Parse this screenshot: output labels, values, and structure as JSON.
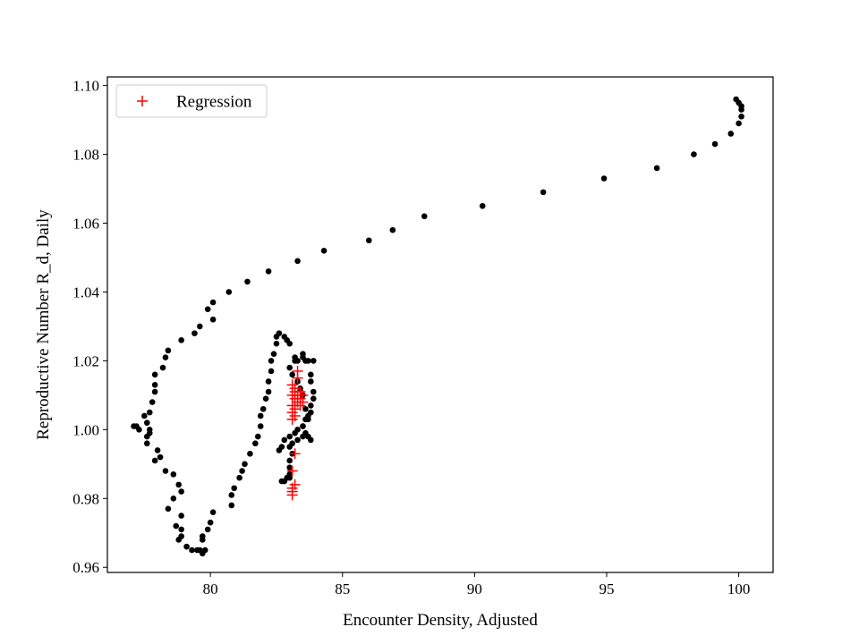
{
  "chart_data": {
    "type": "scatter",
    "title": "",
    "xlabel": "Encounter Density, Adjusted",
    "ylabel": "Reproductive Number R_d, Daily",
    "xlim": [
      76.1,
      101.3
    ],
    "ylim": [
      0.9585,
      1.1025
    ],
    "xticks": [
      80,
      85,
      90,
      95,
      100
    ],
    "xtick_labels": [
      "80",
      "85",
      "90",
      "95",
      "100"
    ],
    "yticks": [
      0.96,
      0.98,
      1.0,
      1.02,
      1.04,
      1.06,
      1.08,
      1.1
    ],
    "ytick_labels": [
      "0.96",
      "0.98",
      "1.00",
      "1.02",
      "1.04",
      "1.06",
      "1.08",
      "1.10"
    ],
    "grid": false,
    "legend_position": "top-left",
    "series": [
      {
        "name": "",
        "marker": "dot",
        "color": "#000000",
        "points": [
          [
            100.1,
            1.091
          ],
          [
            100.1,
            1.093
          ],
          [
            100.1,
            1.094
          ],
          [
            100.0,
            1.095
          ],
          [
            99.9,
            1.096
          ],
          [
            100.0,
            1.089
          ],
          [
            99.7,
            1.086
          ],
          [
            99.1,
            1.083
          ],
          [
            98.3,
            1.08
          ],
          [
            96.9,
            1.076
          ],
          [
            94.9,
            1.073
          ],
          [
            92.6,
            1.069
          ],
          [
            90.3,
            1.065
          ],
          [
            88.1,
            1.062
          ],
          [
            86.9,
            1.058
          ],
          [
            86.0,
            1.055
          ],
          [
            84.3,
            1.052
          ],
          [
            83.3,
            1.049
          ],
          [
            82.2,
            1.046
          ],
          [
            81.4,
            1.043
          ],
          [
            80.7,
            1.04
          ],
          [
            80.1,
            1.037
          ],
          [
            79.9,
            1.035
          ],
          [
            80.1,
            1.032
          ],
          [
            79.6,
            1.03
          ],
          [
            79.4,
            1.028
          ],
          [
            78.9,
            1.026
          ],
          [
            78.4,
            1.023
          ],
          [
            78.3,
            1.021
          ],
          [
            78.2,
            1.018
          ],
          [
            77.9,
            1.016
          ],
          [
            77.9,
            1.013
          ],
          [
            77.9,
            1.011
          ],
          [
            77.8,
            1.008
          ],
          [
            77.7,
            1.005
          ],
          [
            77.5,
            1.004
          ],
          [
            77.6,
            1.002
          ],
          [
            77.2,
            1.001
          ],
          [
            77.1,
            1.001
          ],
          [
            77.3,
            1.0
          ],
          [
            77.7,
            1.0
          ],
          [
            77.7,
            0.999
          ],
          [
            77.6,
            0.998
          ],
          [
            77.6,
            0.996
          ],
          [
            78.0,
            0.994
          ],
          [
            78.1,
            0.992
          ],
          [
            77.9,
            0.991
          ],
          [
            78.3,
            0.988
          ],
          [
            78.6,
            0.987
          ],
          [
            78.8,
            0.984
          ],
          [
            78.9,
            0.982
          ],
          [
            78.6,
            0.98
          ],
          [
            78.4,
            0.977
          ],
          [
            78.9,
            0.975
          ],
          [
            78.7,
            0.972
          ],
          [
            78.9,
            0.971
          ],
          [
            78.9,
            0.969
          ],
          [
            78.8,
            0.968
          ],
          [
            79.1,
            0.966
          ],
          [
            79.3,
            0.965
          ],
          [
            79.5,
            0.965
          ],
          [
            79.6,
            0.965
          ],
          [
            79.7,
            0.964
          ],
          [
            79.8,
            0.965
          ],
          [
            79.7,
            0.968
          ],
          [
            79.7,
            0.969
          ],
          [
            79.9,
            0.971
          ],
          [
            80.0,
            0.973
          ],
          [
            80.1,
            0.976
          ],
          [
            80.8,
            0.978
          ],
          [
            80.8,
            0.981
          ],
          [
            80.9,
            0.983
          ],
          [
            81.1,
            0.986
          ],
          [
            81.2,
            0.988
          ],
          [
            81.3,
            0.99
          ],
          [
            81.5,
            0.993
          ],
          [
            81.7,
            0.996
          ],
          [
            81.8,
            0.998
          ],
          [
            81.9,
            1.001
          ],
          [
            81.9,
            1.004
          ],
          [
            82.0,
            1.006
          ],
          [
            82.1,
            1.009
          ],
          [
            82.2,
            1.011
          ],
          [
            82.2,
            1.014
          ],
          [
            82.3,
            1.017
          ],
          [
            82.3,
            1.02
          ],
          [
            82.4,
            1.022
          ],
          [
            82.5,
            1.025
          ],
          [
            82.5,
            1.027
          ],
          [
            82.6,
            1.028
          ],
          [
            82.8,
            1.027
          ],
          [
            82.9,
            1.026
          ],
          [
            83.0,
            1.025
          ],
          [
            83.2,
            1.02
          ],
          [
            83.3,
            1.02
          ],
          [
            83.5,
            1.021
          ],
          [
            83.6,
            1.02
          ],
          [
            83.7,
            1.02
          ],
          [
            83.9,
            1.02
          ],
          [
            83.8,
            1.016
          ],
          [
            83.8,
            1.014
          ],
          [
            83.9,
            1.011
          ],
          [
            83.9,
            1.009
          ],
          [
            83.8,
            1.007
          ],
          [
            83.8,
            1.005
          ],
          [
            83.7,
            1.004
          ],
          [
            83.6,
            1.003
          ],
          [
            83.5,
            1.001
          ],
          [
            83.3,
            1.0
          ],
          [
            83.2,
            0.999
          ],
          [
            83.0,
            0.998
          ],
          [
            82.8,
            0.997
          ],
          [
            82.7,
            0.995
          ],
          [
            82.6,
            0.994
          ],
          [
            83.1,
            0.993
          ],
          [
            83.0,
            0.991
          ],
          [
            83.0,
            0.989
          ],
          [
            83.0,
            0.986
          ],
          [
            82.9,
            0.986
          ],
          [
            82.8,
            0.985
          ],
          [
            82.7,
            0.985
          ],
          [
            83.0,
            0.987
          ],
          [
            83.0,
            0.995
          ],
          [
            83.1,
            0.996
          ],
          [
            83.3,
            0.997
          ],
          [
            83.5,
            0.998
          ],
          [
            83.6,
            0.999
          ],
          [
            83.7,
            0.998
          ],
          [
            83.8,
            0.997
          ],
          [
            83.5,
            1.001
          ],
          [
            83.7,
            1.003
          ],
          [
            83.6,
            1.006
          ],
          [
            83.5,
            1.01
          ],
          [
            83.4,
            1.012
          ],
          [
            83.3,
            1.014
          ],
          [
            83.1,
            1.016
          ],
          [
            83.0,
            1.018
          ],
          [
            83.2,
            1.021
          ],
          [
            83.5,
            1.022
          ]
        ]
      },
      {
        "name": "Regression",
        "marker": "plus",
        "color": "#ff0000",
        "points": [
          [
            83.1,
            0.981
          ],
          [
            83.1,
            0.982
          ],
          [
            83.1,
            0.983
          ],
          [
            83.2,
            0.984
          ],
          [
            83.1,
            0.988
          ],
          [
            83.2,
            0.993
          ],
          [
            83.1,
            1.003
          ],
          [
            83.2,
            1.004
          ],
          [
            83.1,
            1.005
          ],
          [
            83.2,
            1.006
          ],
          [
            83.1,
            1.007
          ],
          [
            83.3,
            1.008
          ],
          [
            83.2,
            1.009
          ],
          [
            83.4,
            1.009
          ],
          [
            83.5,
            1.008
          ],
          [
            83.4,
            1.007
          ],
          [
            83.1,
            1.01
          ],
          [
            83.2,
            1.011
          ],
          [
            83.3,
            1.01
          ],
          [
            83.4,
            1.011
          ],
          [
            83.5,
            1.01
          ],
          [
            83.2,
            1.012
          ],
          [
            83.1,
            1.013
          ],
          [
            83.3,
            1.015
          ],
          [
            83.3,
            1.017
          ]
        ]
      }
    ]
  }
}
